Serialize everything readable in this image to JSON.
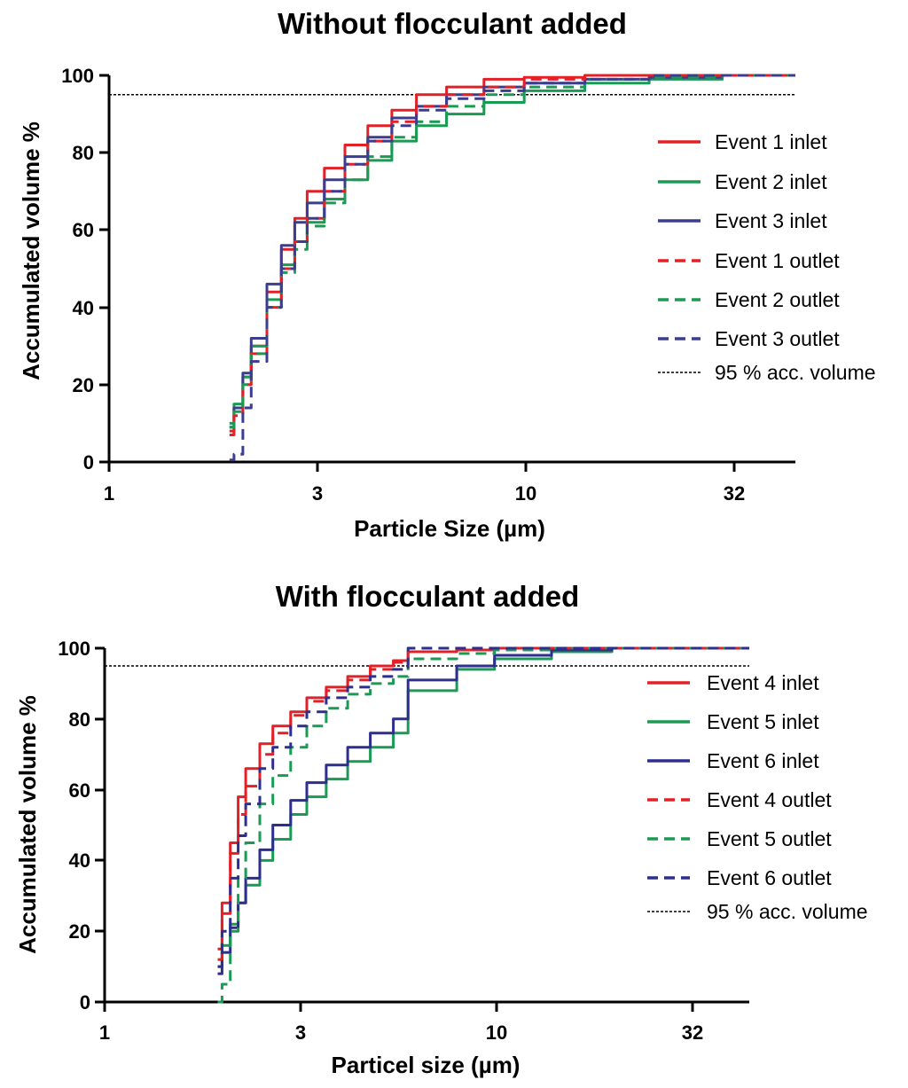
{
  "chart_data": [
    {
      "type": "line",
      "title": "Without flocculant added",
      "xlabel": "Particle Size (µm)",
      "ylabel": "Accumulated volume %",
      "x_scale": "log",
      "xlim": [
        1,
        45
      ],
      "ylim": [
        0,
        100
      ],
      "xticks": [
        1,
        3,
        10,
        32
      ],
      "xtick_labels": [
        "1",
        "3",
        "10",
        "32"
      ],
      "yticks": [
        0,
        20,
        40,
        60,
        80,
        100
      ],
      "ytick_labels": [
        "0",
        "20",
        "40",
        "60",
        "80",
        "100"
      ],
      "legend_position": "right",
      "reference_line": {
        "name": "95 % acc. volume",
        "y": 95,
        "color": "#000000",
        "style": "dotted"
      },
      "series": [
        {
          "name": "Event 1 inlet",
          "color": "#e32026",
          "style": "solid",
          "x": [
            1.95,
            2.0,
            2.1,
            2.2,
            2.4,
            2.6,
            2.8,
            3.0,
            3.3,
            3.7,
            4.2,
            4.8,
            5.5,
            6.5,
            8.0,
            10.0,
            14.0,
            20.0,
            30.0,
            45.0
          ],
          "y": [
            8,
            14,
            22,
            30,
            44,
            55,
            63,
            70,
            76,
            82,
            87,
            91,
            95,
            97,
            99,
            99.5,
            100,
            100,
            100,
            100
          ]
        },
        {
          "name": "Event 2 inlet",
          "color": "#1b9a53",
          "style": "solid",
          "x": [
            1.95,
            2.0,
            2.1,
            2.2,
            2.4,
            2.6,
            2.8,
            3.0,
            3.3,
            3.7,
            4.2,
            4.8,
            5.5,
            6.5,
            8.0,
            10.0,
            14.0,
            20.0,
            30.0,
            45.0
          ],
          "y": [
            10,
            15,
            22,
            30,
            42,
            51,
            57,
            62,
            68,
            73,
            78,
            83,
            87,
            90,
            93,
            96,
            98,
            99,
            100,
            100
          ]
        },
        {
          "name": "Event 3 inlet",
          "color": "#3c3d8f",
          "style": "solid",
          "x": [
            1.95,
            2.0,
            2.1,
            2.2,
            2.4,
            2.6,
            2.8,
            3.0,
            3.3,
            3.7,
            4.2,
            4.8,
            5.5,
            6.5,
            8.0,
            10.0,
            14.0,
            20.0,
            30.0,
            45.0
          ],
          "y": [
            9,
            14,
            23,
            32,
            46,
            56,
            62,
            67,
            73,
            79,
            84,
            89,
            92,
            95,
            97,
            98,
            99,
            99.5,
            100,
            100
          ]
        },
        {
          "name": "Event 1 outlet",
          "color": "#e32026",
          "style": "dashed",
          "x": [
            1.95,
            2.0,
            2.1,
            2.2,
            2.4,
            2.6,
            2.8,
            3.0,
            3.3,
            3.7,
            4.2,
            4.8,
            5.5,
            6.5,
            8.0,
            10.0,
            14.0,
            20.0,
            30.0,
            45.0
          ],
          "y": [
            7,
            12,
            20,
            28,
            40,
            50,
            57,
            63,
            70,
            77,
            83,
            88,
            92,
            95,
            97,
            99,
            100,
            100,
            100,
            100
          ]
        },
        {
          "name": "Event 2 outlet",
          "color": "#1b9a53",
          "style": "dashed",
          "x": [
            1.95,
            2.0,
            2.1,
            2.2,
            2.4,
            2.6,
            2.8,
            3.0,
            3.3,
            3.7,
            4.2,
            4.8,
            5.5,
            6.5,
            8.0,
            10.0,
            14.0,
            20.0,
            30.0,
            45.0
          ],
          "y": [
            9,
            13,
            20,
            28,
            40,
            49,
            55,
            61,
            67,
            73,
            79,
            84,
            88,
            92,
            95,
            97,
            99,
            99.5,
            100,
            100
          ]
        },
        {
          "name": "Event 3 outlet",
          "color": "#3c3d8f",
          "style": "dashed",
          "x": [
            1.95,
            2.0,
            2.1,
            2.2,
            2.4,
            2.6,
            2.8,
            3.0,
            3.3,
            3.7,
            4.2,
            4.8,
            5.5,
            6.5,
            8.0,
            10.0,
            14.0,
            20.0,
            30.0,
            45.0
          ],
          "y": [
            0.5,
            2,
            14,
            26,
            40,
            50,
            57,
            63,
            70,
            77,
            83,
            87,
            91,
            94,
            96,
            98,
            99,
            100,
            100,
            100
          ]
        }
      ]
    },
    {
      "type": "line",
      "title": "With flocculant added",
      "xlabel": "Particel size (µm)",
      "ylabel": "Accumulated volume %",
      "x_scale": "log",
      "xlim": [
        1,
        45
      ],
      "ylim": [
        0,
        100
      ],
      "xticks": [
        1,
        3,
        10,
        32
      ],
      "xtick_labels": [
        "1",
        "3",
        "10",
        "32"
      ],
      "yticks": [
        0,
        20,
        40,
        60,
        80,
        100
      ],
      "ytick_labels": [
        "0",
        "20",
        "40",
        "60",
        "80",
        "100"
      ],
      "legend_position": "right",
      "reference_line": {
        "name": "95 % acc. volume",
        "y": 95,
        "color": "#000000",
        "style": "dotted"
      },
      "series": [
        {
          "name": "Event 4 inlet",
          "color": "#e32026",
          "style": "solid",
          "x": [
            1.95,
            2.0,
            2.1,
            2.2,
            2.3,
            2.5,
            2.7,
            3.0,
            3.3,
            3.7,
            4.2,
            4.8,
            5.5,
            6.0,
            6.0,
            8.0,
            10.0,
            14.0,
            20.0,
            30.0,
            45.0
          ],
          "y": [
            15,
            28,
            45,
            58,
            66,
            73,
            78,
            82,
            86,
            89,
            92,
            95,
            96.5,
            97,
            99,
            99.5,
            100,
            100,
            100,
            100,
            100
          ]
        },
        {
          "name": "Event 5 inlet",
          "color": "#1b9a53",
          "style": "solid",
          "x": [
            1.95,
            2.0,
            2.1,
            2.2,
            2.3,
            2.5,
            2.7,
            3.0,
            3.3,
            3.7,
            4.2,
            4.8,
            5.5,
            6.0,
            6.0,
            8.0,
            10.0,
            14.0,
            20.0,
            30.0,
            45.0
          ],
          "y": [
            10,
            16,
            22,
            28,
            33,
            40,
            46,
            53,
            58,
            63,
            68,
            72,
            76,
            80,
            88,
            94,
            97,
            99,
            100,
            100,
            100
          ]
        },
        {
          "name": "Event 6 inlet",
          "color": "#2d2e8e",
          "style": "solid",
          "x": [
            1.95,
            2.0,
            2.1,
            2.2,
            2.3,
            2.5,
            2.7,
            3.0,
            3.3,
            3.7,
            4.2,
            4.8,
            5.5,
            6.0,
            6.0,
            8.0,
            10.0,
            14.0,
            20.0,
            30.0,
            45.0
          ],
          "y": [
            8,
            14,
            21,
            28,
            35,
            43,
            50,
            57,
            62,
            67,
            72,
            76,
            80,
            84,
            91,
            95,
            98,
            99.5,
            100,
            100,
            100
          ]
        },
        {
          "name": "Event 4 outlet",
          "color": "#e32026",
          "style": "dashed",
          "x": [
            1.95,
            2.0,
            2.1,
            2.2,
            2.3,
            2.5,
            2.7,
            3.0,
            3.3,
            3.7,
            4.2,
            4.8,
            5.5,
            6.0,
            6.0,
            8.0,
            10.0,
            14.0,
            20.0,
            30.0,
            45.0
          ],
          "y": [
            12,
            25,
            42,
            53,
            61,
            70,
            76,
            81,
            85,
            88,
            91,
            94,
            96,
            97,
            99,
            99.5,
            100,
            100,
            100,
            100,
            100
          ]
        },
        {
          "name": "Event 5 outlet",
          "color": "#1b9a53",
          "style": "dashed",
          "x": [
            1.95,
            2.0,
            2.1,
            2.2,
            2.3,
            2.5,
            2.7,
            3.0,
            3.3,
            3.7,
            4.2,
            4.8,
            5.5,
            6.0,
            6.0,
            8.0,
            10.0,
            14.0,
            20.0,
            30.0,
            45.0
          ],
          "y": [
            0,
            5,
            20,
            35,
            45,
            56,
            64,
            72,
            78,
            83,
            87,
            90,
            92,
            93,
            97,
            98.5,
            99.5,
            100,
            100,
            100,
            100
          ]
        },
        {
          "name": "Event 6 outlet",
          "color": "#2d2e8e",
          "style": "dashed",
          "x": [
            1.95,
            2.0,
            2.1,
            2.2,
            2.3,
            2.5,
            2.7,
            3.0,
            3.3,
            3.7,
            4.2,
            4.8,
            5.5,
            6.0,
            6.0,
            8.0,
            10.0,
            14.0,
            20.0,
            30.0,
            45.0
          ],
          "y": [
            10,
            20,
            35,
            47,
            56,
            66,
            72,
            78,
            82,
            86,
            89,
            92,
            94,
            95,
            100,
            100,
            100,
            100,
            100,
            100,
            100
          ]
        }
      ]
    }
  ]
}
